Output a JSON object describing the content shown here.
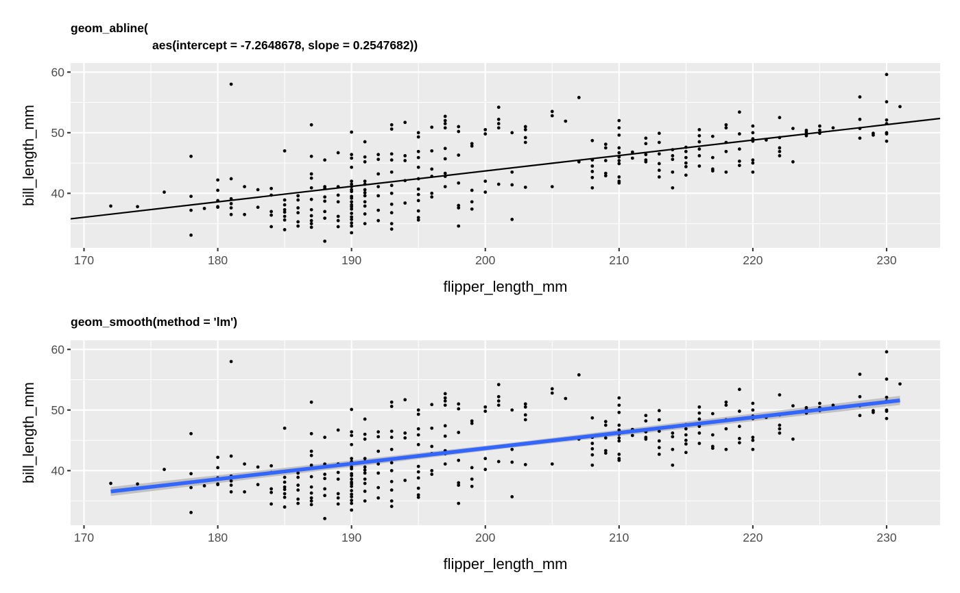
{
  "colors": {
    "panel_background": "#ebebeb",
    "grid": "#ffffff",
    "points": "#000000",
    "abline": "#000000",
    "smooth_line": "#3366ff",
    "smooth_ribbon": "#b3b3b3"
  },
  "chart_data": [
    {
      "type": "scatter",
      "title_lines": [
        "geom_abline(",
        "aes(intercept = -7.2648678, slope = 0.2547682))"
      ],
      "xlabel": "flipper_length_mm",
      "ylabel": "bill_length_mm",
      "xlim": [
        169,
        234
      ],
      "ylim": [
        31,
        61.5
      ],
      "x_ticks": [
        170,
        180,
        190,
        200,
        210,
        220,
        230
      ],
      "y_ticks": [
        40,
        50,
        60
      ],
      "x_tick_labels": [
        "170",
        "180",
        "190",
        "200",
        "210",
        "220",
        "230"
      ],
      "y_tick_labels": [
        "40",
        "50",
        "60"
      ],
      "grid": true,
      "reference_line": {
        "intercept": -7.2648678,
        "slope": 0.2547682,
        "color": "#000000"
      }
    },
    {
      "type": "scatter",
      "title_lines": [
        "geom_smooth(method = 'lm')"
      ],
      "xlabel": "flipper_length_mm",
      "ylabel": "bill_length_mm",
      "xlim": [
        169,
        234
      ],
      "ylim": [
        31,
        61.5
      ],
      "x_ticks": [
        170,
        180,
        190,
        200,
        210,
        220,
        230
      ],
      "y_ticks": [
        40,
        50,
        60
      ],
      "x_tick_labels": [
        "170",
        "180",
        "190",
        "200",
        "210",
        "220",
        "230"
      ],
      "y_tick_labels": [
        "40",
        "50",
        "60"
      ],
      "grid": true,
      "smooth": {
        "method": "lm",
        "x_range": [
          172,
          231
        ],
        "y_start": 36.56,
        "y_end": 51.59,
        "se_halfwidth": 0.75,
        "color": "#3366ff"
      }
    }
  ],
  "points": [
    [
      172,
      37.9
    ],
    [
      174,
      37.8
    ],
    [
      176,
      40.2
    ],
    [
      178,
      46.1
    ],
    [
      178,
      39.5
    ],
    [
      178,
      37.2
    ],
    [
      178,
      33.1
    ],
    [
      179,
      37.5
    ],
    [
      180,
      42.2
    ],
    [
      180,
      40.5
    ],
    [
      180,
      38.8
    ],
    [
      180,
      37.8
    ],
    [
      180,
      37.7
    ],
    [
      181,
      58.0
    ],
    [
      181,
      42.4
    ],
    [
      181,
      39.1
    ],
    [
      181,
      38.3
    ],
    [
      181,
      37.6
    ],
    [
      181,
      36.5
    ],
    [
      182,
      41.1
    ],
    [
      182,
      36.5
    ],
    [
      183,
      40.6
    ],
    [
      183,
      37.7
    ],
    [
      184,
      40.8
    ],
    [
      184,
      39.7
    ],
    [
      184,
      37.0
    ],
    [
      184,
      36.4
    ],
    [
      184,
      34.5
    ],
    [
      185,
      47.0
    ],
    [
      185,
      38.9
    ],
    [
      185,
      38.1
    ],
    [
      185,
      37.3
    ],
    [
      185,
      36.9
    ],
    [
      185,
      36.2
    ],
    [
      185,
      35.6
    ],
    [
      185,
      34.0
    ],
    [
      186,
      39.6
    ],
    [
      186,
      38.9
    ],
    [
      186,
      37.6
    ],
    [
      186,
      36.8
    ],
    [
      186,
      35.3
    ],
    [
      186,
      34.6
    ],
    [
      187,
      51.3
    ],
    [
      187,
      46.1
    ],
    [
      187,
      43.2
    ],
    [
      187,
      42.5
    ],
    [
      187,
      40.9
    ],
    [
      187,
      39.0
    ],
    [
      187,
      37.3
    ],
    [
      187,
      36.3
    ],
    [
      187,
      35.5
    ],
    [
      187,
      35.0
    ],
    [
      187,
      34.4
    ],
    [
      188,
      45.5
    ],
    [
      188,
      41.1
    ],
    [
      188,
      40.8
    ],
    [
      188,
      39.4
    ],
    [
      188,
      38.7
    ],
    [
      188,
      37.0
    ],
    [
      188,
      35.9
    ],
    [
      188,
      32.1
    ],
    [
      189,
      46.7
    ],
    [
      189,
      41.1
    ],
    [
      189,
      39.7
    ],
    [
      189,
      38.6
    ],
    [
      189,
      36.2
    ],
    [
      189,
      35.5
    ],
    [
      189,
      34.5
    ],
    [
      190,
      50.1
    ],
    [
      190,
      46.4
    ],
    [
      190,
      45.8
    ],
    [
      190,
      44.3
    ],
    [
      190,
      42.0
    ],
    [
      190,
      41.5
    ],
    [
      190,
      41.1
    ],
    [
      190,
      40.6
    ],
    [
      190,
      40.3
    ],
    [
      190,
      39.5
    ],
    [
      190,
      39.2
    ],
    [
      190,
      38.6
    ],
    [
      190,
      38.1
    ],
    [
      190,
      37.8
    ],
    [
      190,
      37.4
    ],
    [
      190,
      36.7
    ],
    [
      190,
      36.1
    ],
    [
      190,
      35.7
    ],
    [
      190,
      35.1
    ],
    [
      190,
      34.6
    ],
    [
      190,
      33.5
    ],
    [
      191,
      48.5
    ],
    [
      191,
      46.0
    ],
    [
      191,
      45.2
    ],
    [
      191,
      42.0
    ],
    [
      191,
      41.5
    ],
    [
      191,
      40.6
    ],
    [
      191,
      40.1
    ],
    [
      191,
      39.6
    ],
    [
      191,
      38.6
    ],
    [
      191,
      37.9
    ],
    [
      191,
      36.6
    ],
    [
      191,
      35.0
    ],
    [
      192,
      46.4
    ],
    [
      192,
      45.6
    ],
    [
      192,
      43.2
    ],
    [
      192,
      41.1
    ],
    [
      192,
      39.6
    ],
    [
      192,
      37.2
    ],
    [
      192,
      35.5
    ],
    [
      193,
      51.3
    ],
    [
      193,
      50.6
    ],
    [
      193,
      46.5
    ],
    [
      193,
      45.5
    ],
    [
      193,
      43.5
    ],
    [
      193,
      41.3
    ],
    [
      193,
      40.0
    ],
    [
      193,
      38.2
    ],
    [
      193,
      36.8
    ],
    [
      193,
      35.0
    ],
    [
      193,
      34.1
    ],
    [
      194,
      51.7
    ],
    [
      194,
      46.2
    ],
    [
      194,
      45.4
    ],
    [
      194,
      42.1
    ],
    [
      194,
      38.4
    ],
    [
      195,
      50.0
    ],
    [
      195,
      49.3
    ],
    [
      195,
      46.9
    ],
    [
      195,
      45.9
    ],
    [
      195,
      44.3
    ],
    [
      195,
      42.4
    ],
    [
      195,
      40.7
    ],
    [
      195,
      39.8
    ],
    [
      195,
      38.8
    ],
    [
      195,
      37.1
    ],
    [
      195,
      36.0
    ],
    [
      195,
      35.6
    ],
    [
      196,
      50.9
    ],
    [
      196,
      47.0
    ],
    [
      196,
      44.0
    ],
    [
      196,
      42.8
    ],
    [
      196,
      40.0
    ],
    [
      196,
      39.4
    ],
    [
      197,
      52.7
    ],
    [
      197,
      52.0
    ],
    [
      197,
      51.5
    ],
    [
      197,
      50.8
    ],
    [
      197,
      47.4
    ],
    [
      197,
      45.7
    ],
    [
      197,
      43.3
    ],
    [
      197,
      42.8
    ],
    [
      197,
      41.1
    ],
    [
      198,
      51.0
    ],
    [
      198,
      50.2
    ],
    [
      198,
      46.3
    ],
    [
      198,
      41.7
    ],
    [
      198,
      38.0
    ],
    [
      198,
      37.6
    ],
    [
      198,
      34.6
    ],
    [
      199,
      48.2
    ],
    [
      199,
      47.8
    ],
    [
      199,
      40.5
    ],
    [
      199,
      38.6
    ],
    [
      199,
      37.4
    ],
    [
      200,
      50.5
    ],
    [
      200,
      49.8
    ],
    [
      200,
      42.0
    ],
    [
      200,
      40.2
    ],
    [
      201,
      54.2
    ],
    [
      201,
      52.2
    ],
    [
      201,
      51.5
    ],
    [
      201,
      50.8
    ],
    [
      201,
      41.5
    ],
    [
      202,
      50.0
    ],
    [
      202,
      43.5
    ],
    [
      202,
      41.4
    ],
    [
      202,
      35.7
    ],
    [
      203,
      51.0
    ],
    [
      203,
      50.5
    ],
    [
      203,
      49.2
    ],
    [
      203,
      48.4
    ],
    [
      203,
      41.0
    ],
    [
      205,
      53.5
    ],
    [
      205,
      52.8
    ],
    [
      205,
      41.1
    ],
    [
      206,
      51.9
    ],
    [
      207,
      55.8
    ],
    [
      207,
      45.2
    ],
    [
      208,
      48.7
    ],
    [
      208,
      45.5
    ],
    [
      208,
      44.5
    ],
    [
      208,
      43.6
    ],
    [
      208,
      42.6
    ],
    [
      208,
      40.9
    ],
    [
      209,
      48.1
    ],
    [
      209,
      47.5
    ],
    [
      209,
      45.4
    ],
    [
      209,
      43.3
    ],
    [
      209,
      42.9
    ],
    [
      210,
      52.0
    ],
    [
      210,
      50.8
    ],
    [
      210,
      49.6
    ],
    [
      210,
      47.5
    ],
    [
      210,
      46.7
    ],
    [
      210,
      46.0
    ],
    [
      210,
      45.4
    ],
    [
      210,
      44.9
    ],
    [
      210,
      42.7
    ],
    [
      210,
      42.0
    ],
    [
      210,
      41.7
    ],
    [
      211,
      46.8
    ],
    [
      211,
      45.8
    ],
    [
      212,
      49.1
    ],
    [
      212,
      48.2
    ],
    [
      212,
      46.4
    ],
    [
      212,
      45.5
    ],
    [
      212,
      45.2
    ],
    [
      213,
      49.9
    ],
    [
      213,
      48.4
    ],
    [
      213,
      46.5
    ],
    [
      213,
      44.9
    ],
    [
      213,
      43.8
    ],
    [
      213,
      42.7
    ],
    [
      214,
      47.2
    ],
    [
      214,
      46.2
    ],
    [
      214,
      45.6
    ],
    [
      214,
      43.5
    ],
    [
      214,
      40.9
    ],
    [
      215,
      47.6
    ],
    [
      215,
      46.9
    ],
    [
      215,
      45.9
    ],
    [
      215,
      45.0
    ],
    [
      215,
      44.4
    ],
    [
      215,
      43.0
    ],
    [
      216,
      50.5
    ],
    [
      216,
      49.5
    ],
    [
      216,
      48.5
    ],
    [
      216,
      47.3
    ],
    [
      216,
      46.2
    ],
    [
      216,
      44.5
    ],
    [
      217,
      49.4
    ],
    [
      217,
      45.9
    ],
    [
      217,
      44.0
    ],
    [
      217,
      43.7
    ],
    [
      218,
      51.3
    ],
    [
      218,
      50.8
    ],
    [
      218,
      48.4
    ],
    [
      218,
      46.9
    ],
    [
      218,
      43.5
    ],
    [
      219,
      53.4
    ],
    [
      219,
      49.8
    ],
    [
      219,
      47.3
    ],
    [
      219,
      45.3
    ],
    [
      219,
      44.6
    ],
    [
      220,
      51.1
    ],
    [
      220,
      50.0
    ],
    [
      220,
      49.0
    ],
    [
      220,
      48.6
    ],
    [
      220,
      45.5
    ],
    [
      220,
      45.0
    ],
    [
      220,
      43.5
    ],
    [
      221,
      48.8
    ],
    [
      222,
      52.5
    ],
    [
      222,
      49.2
    ],
    [
      222,
      47.5
    ],
    [
      222,
      46.9
    ],
    [
      222,
      46.2
    ],
    [
      223,
      50.7
    ],
    [
      223,
      45.2
    ],
    [
      224,
      50.4
    ],
    [
      224,
      50.1
    ],
    [
      224,
      49.8
    ],
    [
      224,
      49.5
    ],
    [
      225,
      51.1
    ],
    [
      225,
      50.4
    ],
    [
      225,
      49.9
    ],
    [
      226,
      50.8
    ],
    [
      228,
      55.9
    ],
    [
      228,
      52.2
    ],
    [
      228,
      50.7
    ],
    [
      228,
      49.1
    ],
    [
      229,
      49.9
    ],
    [
      229,
      49.6
    ],
    [
      230,
      59.6
    ],
    [
      230,
      55.1
    ],
    [
      230,
      52.1
    ],
    [
      230,
      51.5
    ],
    [
      230,
      50.0
    ],
    [
      230,
      49.8
    ],
    [
      230,
      48.6
    ],
    [
      231,
      54.3
    ]
  ]
}
